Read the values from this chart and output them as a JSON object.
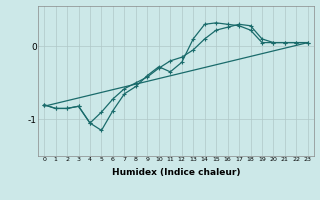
{
  "xlabel": "Humidex (Indice chaleur)",
  "bg_color": "#cce8e8",
  "grid_color": "#b0c8c8",
  "line_color": "#1a6b6b",
  "xlim": [
    -0.5,
    23.5
  ],
  "ylim": [
    -1.5,
    0.55
  ],
  "yticks": [
    0,
    -1
  ],
  "xticks": [
    0,
    1,
    2,
    3,
    4,
    5,
    6,
    7,
    8,
    9,
    10,
    11,
    12,
    13,
    14,
    15,
    16,
    17,
    18,
    19,
    20,
    21,
    22,
    23
  ],
  "line1_x": [
    0,
    1,
    2,
    3,
    4,
    5,
    6,
    7,
    8,
    9,
    10,
    11,
    12,
    13,
    14,
    15,
    16,
    17,
    18,
    19,
    20,
    21,
    22,
    23
  ],
  "line1_y": [
    -0.8,
    -0.85,
    -0.85,
    -0.82,
    -1.05,
    -1.15,
    -0.88,
    -0.65,
    -0.55,
    -0.4,
    -0.28,
    -0.35,
    -0.22,
    0.1,
    0.3,
    0.32,
    0.3,
    0.28,
    0.22,
    0.05,
    0.05,
    0.05,
    0.05,
    0.05
  ],
  "line2_x": [
    0,
    1,
    2,
    3,
    4,
    5,
    6,
    7,
    8,
    9,
    10,
    11,
    12,
    13,
    14,
    15,
    16,
    17,
    18,
    19,
    20,
    21,
    22,
    23
  ],
  "line2_y": [
    -0.8,
    -0.85,
    -0.85,
    -0.82,
    -1.05,
    -0.9,
    -0.72,
    -0.58,
    -0.5,
    -0.42,
    -0.3,
    -0.2,
    -0.15,
    -0.05,
    0.1,
    0.22,
    0.26,
    0.3,
    0.28,
    0.1,
    0.05,
    0.05,
    0.05,
    0.05
  ],
  "line3_x": [
    0,
    23
  ],
  "line3_y": [
    -0.82,
    0.05
  ]
}
